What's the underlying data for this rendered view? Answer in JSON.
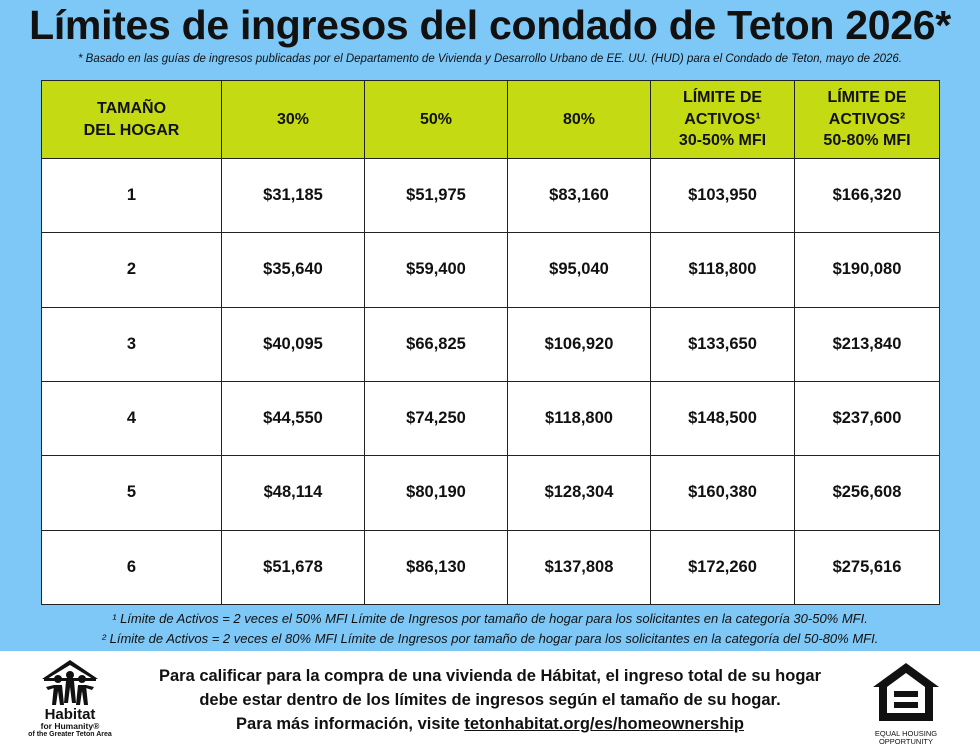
{
  "title": "Límites de ingresos del condado de Teton 2026*",
  "subtitle": "* Basado en las guías de ingresos publicadas por el Departamento de Vivienda y Desarrollo Urbano de EE. UU. (HUD) para el Condado de Teton, mayo de 2026.",
  "table": {
    "headers": [
      {
        "line1": "TAMAÑO",
        "line2": "DEL HOGAR",
        "line3": ""
      },
      {
        "line1": "30%",
        "line2": "",
        "line3": ""
      },
      {
        "line1": "50%",
        "line2": "",
        "line3": ""
      },
      {
        "line1": "80%",
        "line2": "",
        "line3": ""
      },
      {
        "line1": "LÍMITE DE",
        "line2": "ACTIVOS¹",
        "line3": "30-50% MFI"
      },
      {
        "line1": "LÍMITE DE",
        "line2": "ACTIVOS²",
        "line3": "50-80% MFI"
      }
    ],
    "rows": [
      [
        "1",
        "$31,185",
        "$51,975",
        "$83,160",
        "$103,950",
        "$166,320"
      ],
      [
        "2",
        "$35,640",
        "$59,400",
        "$95,040",
        "$118,800",
        "$190,080"
      ],
      [
        "3",
        "$40,095",
        "$66,825",
        "$106,920",
        "$133,650",
        "$213,840"
      ],
      [
        "4",
        "$44,550",
        "$74,250",
        "$118,800",
        "$148,500",
        "$237,600"
      ],
      [
        "5",
        "$48,114",
        "$80,190",
        "$128,304",
        "$160,380",
        "$256,608"
      ],
      [
        "6",
        "$51,678",
        "$86,130",
        "$137,808",
        "$172,260",
        "$275,616"
      ]
    ]
  },
  "footnotes": [
    "¹ Límite de Activos = 2 veces el 50% MFI Límite de Ingresos por tamaño de hogar para los solicitantes en la categoría 30-50% MFI.",
    "² Límite de Activos = 2 veces el 80% MFI Límite de Ingresos por tamaño de hogar para los solicitantes en la categoría del 50-80% MFI."
  ],
  "info": {
    "line1": "Para calificar para la compra de una vivienda de Hábitat, el ingreso total de su hogar",
    "line2": "debe estar dentro de los límites de ingresos según el tamaño de su hogar.",
    "line3_prefix": "Para más información, visite ",
    "link": "tetonhabitat.org/es/homeownership"
  },
  "logo": {
    "name": "Habitat",
    "tagline": "for Humanity®",
    "area": "of the Greater Teton Area",
    "icon": "habitat-house-people-icon"
  },
  "eho": {
    "line1": "EQUAL HOUSING",
    "line2": "OPPORTUNITY",
    "icon": "equal-housing-icon"
  },
  "colors": {
    "background": "#7ec8f7",
    "header": "#c4db14",
    "table": "#ffffff"
  }
}
